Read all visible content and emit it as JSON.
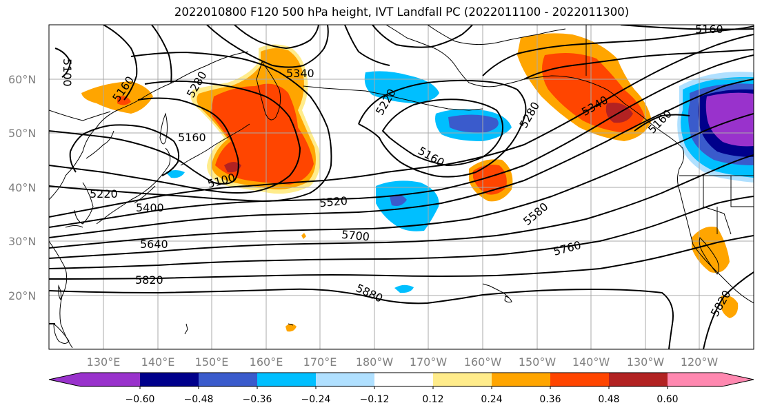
{
  "title": "2022010800 F120 500 hPa height, IVT Landfall PC (2022011100 - 2022011300)",
  "map": {
    "lat_labels": [
      "60°N",
      "50°N",
      "40°N",
      "30°N",
      "20°N"
    ],
    "lon_labels": [
      "130°E",
      "140°E",
      "150°E",
      "160°E",
      "170°E",
      "180°W",
      "170°W",
      "160°W",
      "150°W",
      "140°W",
      "130°W",
      "120°W"
    ],
    "contour_labels": [
      "5100",
      "5160",
      "5280",
      "5340",
      "5220",
      "5160",
      "5100",
      "5220",
      "5400",
      "5520",
      "5160",
      "5280",
      "5340",
      "5160",
      "5580",
      "5640",
      "5700",
      "5760",
      "5820",
      "5880",
      "5820",
      "5160"
    ],
    "colors": {
      "grid": "#a9a9a9",
      "contour": "#000000",
      "land_outline": "#000000"
    }
  },
  "colorbar": {
    "ticks": [
      "−0.60",
      "−0.48",
      "−0.36",
      "−0.24",
      "−0.12",
      "0.12",
      "0.24",
      "0.36",
      "0.48",
      "0.60"
    ],
    "colors": [
      "#9932cc",
      "#00008b",
      "#3a5bcc",
      "#00bfff",
      "#b0e0ff",
      "#ffffff",
      "#ffec8b",
      "#ffa500",
      "#ff4500",
      "#b22222",
      "#ff88b0"
    ]
  }
}
